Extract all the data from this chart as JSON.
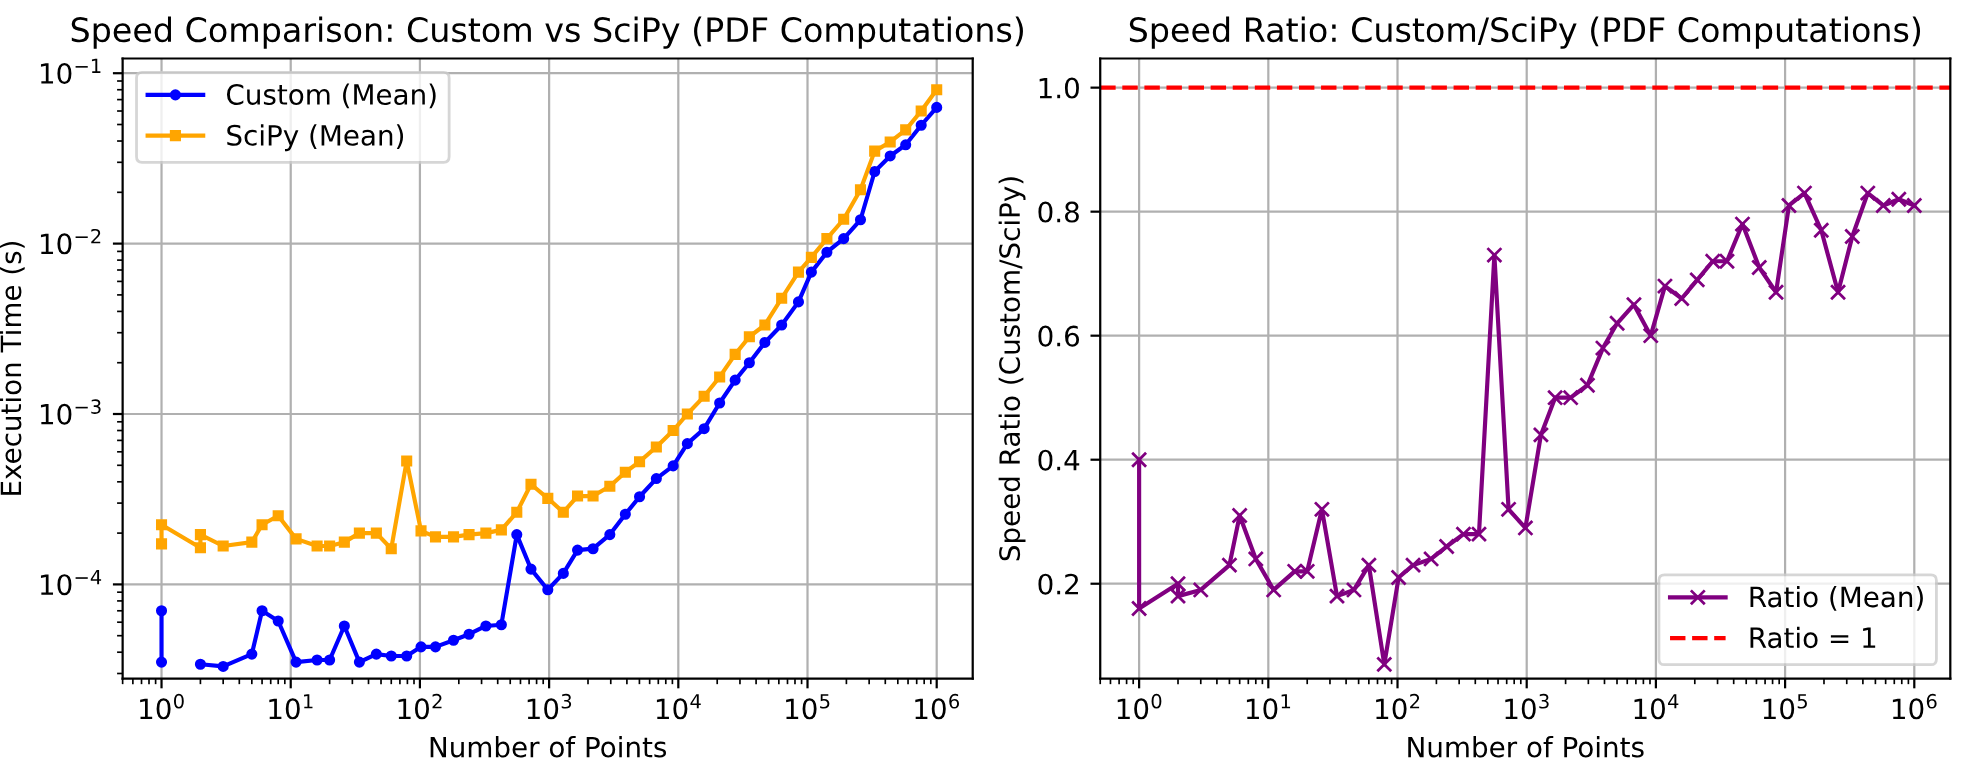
{
  "chart_data": [
    {
      "type": "line",
      "title": "Speed Comparison: Custom vs SciPy (PDF Computations)",
      "xlabel": "Number of Points",
      "ylabel": "Execution Time (s)",
      "log": "xy",
      "grid": true,
      "legend": "top left",
      "x": [
        1,
        1,
        2,
        2,
        3,
        5,
        6,
        8,
        11,
        16,
        20,
        26,
        34,
        46,
        60,
        79,
        102,
        132,
        182,
        240,
        324,
        427,
        562,
        724,
        977,
        1288,
        1660,
        2188,
        2951,
        3890,
        5012,
        6761,
        9120,
        11749,
        15849,
        20893,
        27542,
        35481,
        46774,
        63096,
        85114,
        107152,
        141254,
        190546,
        257040,
        331131,
        436516,
        575440,
        758578,
        1000000
      ],
      "series": [
        {
          "name": "Custom (Mean)",
          "color": "#0000ff",
          "marker": "circle",
          "values": [
            7e-05,
            3.5e-05,
            null,
            3.4e-05,
            3.3e-05,
            3.9e-05,
            7e-05,
            6.1e-05,
            3.5e-05,
            3.6e-05,
            3.6e-05,
            5.7e-05,
            3.5e-05,
            3.9e-05,
            3.8e-05,
            3.8e-05,
            4.3e-05,
            4.3e-05,
            4.7e-05,
            5.1e-05,
            5.7e-05,
            5.8e-05,
            0.000196,
            0.000123,
            9.3e-05,
            0.000116,
            0.000159,
            0.000162,
            0.000196,
            0.000258,
            0.000327,
            0.000418,
            0.000496,
            0.00067,
            0.00082,
            0.00116,
            0.00158,
            0.002,
            0.00263,
            0.00333,
            0.00455,
            0.0068,
            0.0089,
            0.0107,
            0.0138,
            0.0265,
            0.0327,
            0.038,
            0.0495,
            0.063
          ]
        },
        {
          "name": "SciPy (Mean)",
          "color": "#ffa500",
          "marker": "square",
          "values": [
            0.000173,
            0.000224,
            0.000164,
            0.000196,
            0.000168,
            0.000177,
            0.000224,
            0.000253,
            0.000185,
            0.000168,
            0.000168,
            0.000177,
            0.0002,
            0.0002,
            0.000162,
            0.00053,
            0.000206,
            0.00019,
            0.00019,
            0.000196,
            0.0002,
            0.000209,
            0.000265,
            0.000387,
            0.00032,
            0.000265,
            0.00033,
            0.00033,
            0.000377,
            0.000455,
            0.000525,
            0.00064,
            0.0008,
            0.001,
            0.00127,
            0.00165,
            0.00224,
            0.00284,
            0.00333,
            0.00478,
            0.0068,
            0.0083,
            0.0107,
            0.0139,
            0.0207,
            0.0349,
            0.0395,
            0.0465,
            0.06,
            0.08
          ]
        }
      ],
      "xlim": [
        0.5,
        1900000
      ],
      "ylim": [
        2.8e-05,
        0.122
      ],
      "xticks": [
        {
          "value": 1,
          "label": "10$^{0}$"
        },
        {
          "value": 10,
          "label": "10$^{1}$"
        },
        {
          "value": 100,
          "label": "10$^{2}$"
        },
        {
          "value": 1000,
          "label": "10$^{3}$"
        },
        {
          "value": 10000,
          "label": "10$^{4}$"
        },
        {
          "value": 100000,
          "label": "10$^{5}$"
        },
        {
          "value": 1000000,
          "label": "10$^{6}$"
        }
      ],
      "yticks": [
        {
          "value": 0.0001,
          "label": "10$^{−4}$"
        },
        {
          "value": 0.001,
          "label": "10$^{−3}$"
        },
        {
          "value": 0.01,
          "label": "10$^{−2}$"
        },
        {
          "value": 0.1,
          "label": "10$^{−1}$"
        }
      ]
    },
    {
      "type": "line",
      "title": "Speed Ratio: Custom/SciPy (PDF Computations)",
      "xlabel": "Number of Points",
      "ylabel": "Speed Ratio (Custom/SciPy)",
      "log": "x",
      "grid": true,
      "legend": "bottom right",
      "x": [
        1,
        1,
        2,
        2,
        3,
        5,
        6,
        8,
        11,
        16,
        20,
        26,
        34,
        46,
        60,
        79,
        102,
        132,
        182,
        240,
        324,
        427,
        562,
        724,
        977,
        1288,
        1660,
        2188,
        2951,
        3890,
        5012,
        6761,
        9120,
        11749,
        15849,
        20893,
        27542,
        35481,
        46774,
        63096,
        85114,
        107152,
        141254,
        190546,
        257040,
        331131,
        436516,
        575440,
        758578,
        1000000
      ],
      "series": [
        {
          "name": "Ratio (Mean)",
          "color": "#800080",
          "marker": "cross",
          "values": [
            0.4,
            0.16,
            0.2,
            0.18,
            0.19,
            0.23,
            0.31,
            0.24,
            0.19,
            0.22,
            0.22,
            0.32,
            0.18,
            0.19,
            0.23,
            0.07,
            0.21,
            0.23,
            0.24,
            0.26,
            0.28,
            0.28,
            0.73,
            0.32,
            0.29,
            0.44,
            0.5,
            0.5,
            0.52,
            0.58,
            0.62,
            0.65,
            0.6,
            0.68,
            0.66,
            0.69,
            0.72,
            0.72,
            0.78,
            0.71,
            0.67,
            0.81,
            0.83,
            0.77,
            0.67,
            0.76,
            0.83,
            0.81,
            0.82,
            0.81
          ]
        }
      ],
      "ref_lines": [
        {
          "axis": "y",
          "value": 1,
          "label": "Ratio = 1",
          "color": "#ff0000",
          "line_style": "dashed"
        }
      ],
      "xlim": [
        0.5,
        1900000
      ],
      "ylim": [
        0.047,
        1.047
      ],
      "xticks": [
        {
          "value": 1,
          "label": "10$^{0}$"
        },
        {
          "value": 10,
          "label": "10$^{1}$"
        },
        {
          "value": 100,
          "label": "10$^{2}$"
        },
        {
          "value": 1000,
          "label": "10$^{3}$"
        },
        {
          "value": 10000,
          "label": "10$^{4}$"
        },
        {
          "value": 100000,
          "label": "10$^{5}$"
        },
        {
          "value": 1000000,
          "label": "10$^{6}$"
        }
      ],
      "yticks": [
        {
          "value": 0.2,
          "label": "0.2"
        },
        {
          "value": 0.4,
          "label": "0.4"
        },
        {
          "value": 0.6,
          "label": "0.6"
        },
        {
          "value": 0.8,
          "label": "0.8"
        },
        {
          "value": 1.0,
          "label": "1.0"
        }
      ]
    }
  ]
}
